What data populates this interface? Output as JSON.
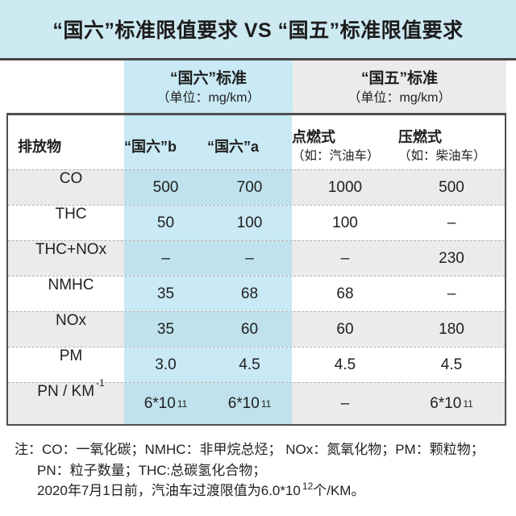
{
  "title": "“国六”标准限值要求 VS “国五”标准限值要求",
  "colors": {
    "title_band_blue": "#cde9f2",
    "highlight_column_blue": "#c9e9f4",
    "highlight_column_blue_on_stripe": "#bfe2ec",
    "stripe_gray": "#ebebeb",
    "border_dark": "#4f4f4f",
    "text": "#1f1f1f"
  },
  "table": {
    "groups": [
      {
        "name": "“国六”标准",
        "unit": "（单位：mg/km）"
      },
      {
        "name": "“国五”标准",
        "unit": "（单位：mg/km）"
      }
    ],
    "columns": [
      {
        "label": "排放物",
        "sub": ""
      },
      {
        "label": "“国六”b",
        "sub": ""
      },
      {
        "label": "“国六”a",
        "sub": ""
      },
      {
        "label": "点燃式",
        "sub": "（如：汽油车）"
      },
      {
        "label": "压燃式",
        "sub": "（如：柴油车）"
      }
    ],
    "rows": [
      {
        "label": "CO",
        "values": [
          "500",
          "700",
          "1000",
          "500"
        ]
      },
      {
        "label": "THC",
        "values": [
          "50",
          "100",
          "100",
          "–"
        ]
      },
      {
        "label": "THC+NOx",
        "values": [
          "–",
          "–",
          "–",
          "230"
        ]
      },
      {
        "label": "NMHC",
        "values": [
          "35",
          "68",
          "68",
          "–"
        ]
      },
      {
        "label": "NOx",
        "values": [
          "35",
          "60",
          "60",
          "180"
        ]
      },
      {
        "label": "PM",
        "values": [
          "3.0",
          "4.5",
          "4.5",
          "4.5"
        ]
      },
      {
        "label": "PN / KM^-1",
        "values": [
          "6*10^11",
          "6*10^11",
          "–",
          "6*10^11"
        ]
      }
    ]
  },
  "notes": [
    {
      "text": "注：CO：一氧化碳；NMHC：非甲烷总烃； NOx：氮氧化物；PM：颗粒物；",
      "indent": false
    },
    {
      "text": "PN：粒子数量；THC:总碳氢化合物；",
      "indent": true
    },
    {
      "text": "2020年7月1日前，汽油车过渡限值为6.0*10^12个/KM。",
      "indent": true
    }
  ],
  "chart_data": {
    "type": "table",
    "title": "“国六”标准限值要求 VS “国五”标准限值要求",
    "unit": "mg/km",
    "column_groups": [
      "“国六”标准",
      "“国五”标准"
    ],
    "columns": [
      "排放物",
      "“国六”b",
      "“国六”a",
      "点燃式（如：汽油车）",
      "压燃式（如：柴油车）"
    ],
    "rows": [
      [
        "CO",
        "500",
        "700",
        "1000",
        "500"
      ],
      [
        "THC",
        "50",
        "100",
        "100",
        "–"
      ],
      [
        "THC+NOx",
        "–",
        "–",
        "–",
        "230"
      ],
      [
        "NMHC",
        "35",
        "68",
        "68",
        "–"
      ],
      [
        "NOx",
        "35",
        "60",
        "60",
        "180"
      ],
      [
        "PM",
        "3.0",
        "4.5",
        "4.5",
        "4.5"
      ],
      [
        "PN / KM⁻¹",
        "6*10¹¹",
        "6*10¹¹",
        "–",
        "6*10¹¹"
      ]
    ]
  }
}
